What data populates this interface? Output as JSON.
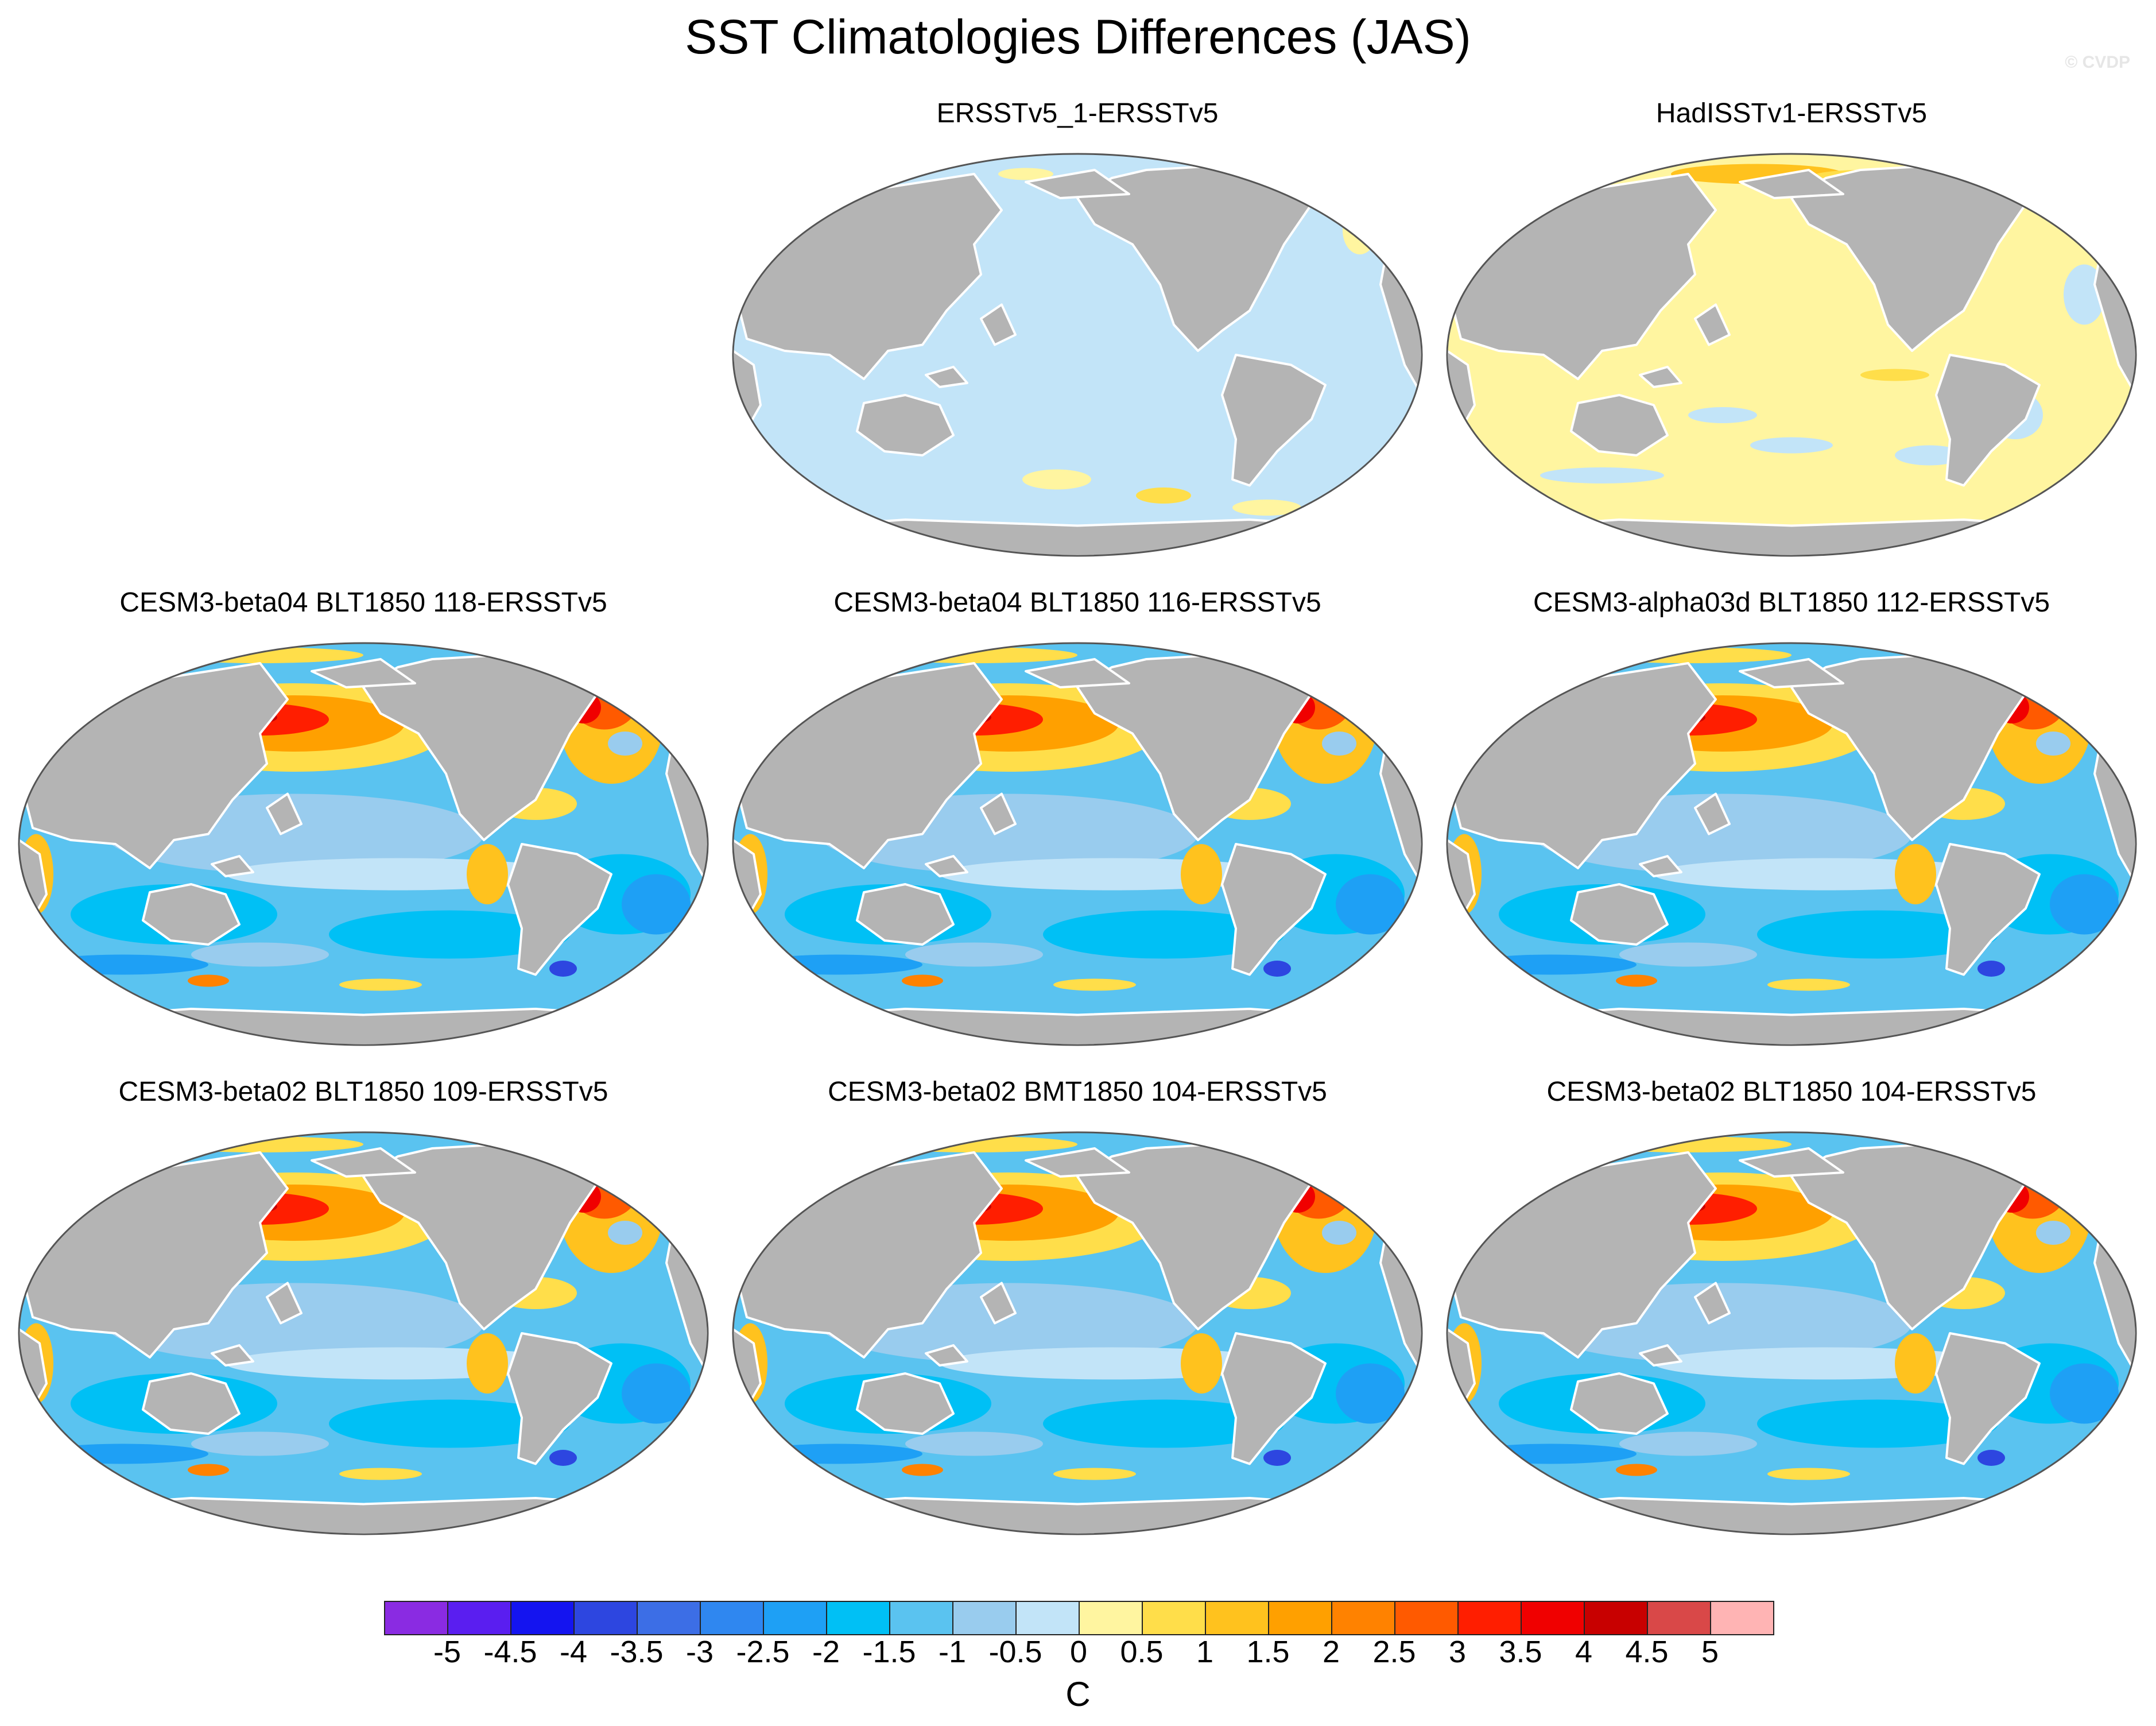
{
  "title": "SST Climatologies Differences (JAS)",
  "watermark": "© CVDP",
  "panels": [
    {
      "title": "ERSSTv5_1-ERSSTv5",
      "pattern": "uniform-negative"
    },
    {
      "title": "HadISSTv1-ERSSTv5",
      "pattern": "uniform-positive"
    },
    {
      "title": "CESM3-beta04 BLT1850 118-ERSSTv5",
      "pattern": "model"
    },
    {
      "title": "CESM3-beta04 BLT1850 116-ERSSTv5",
      "pattern": "model"
    },
    {
      "title": "CESM3-alpha03d BLT1850 112-ERSSTv5",
      "pattern": "model"
    },
    {
      "title": "CESM3-beta02 BLT1850 109-ERSSTv5",
      "pattern": "model"
    },
    {
      "title": "CESM3-beta02 BMT1850 104-ERSSTv5",
      "pattern": "model"
    },
    {
      "title": "CESM3-beta02 BLT1850 104-ERSSTv5",
      "pattern": "model"
    }
  ],
  "colorbar": {
    "unit": "C",
    "labels": [
      "-5",
      "-4.5",
      "-4",
      "-3.5",
      "-3",
      "-2.5",
      "-2",
      "-1.5",
      "-1",
      "-0.5",
      "0",
      "0.5",
      "1",
      "1.5",
      "2",
      "2.5",
      "3",
      "3.5",
      "4",
      "4.5",
      "5"
    ],
    "colors": [
      "#8a2be2",
      "#5a1ef0",
      "#1414f0",
      "#2d46e0",
      "#3c6ee6",
      "#2f87f0",
      "#1ea0f5",
      "#00c0f5",
      "#5ac3f0",
      "#99ccee",
      "#c2e4f8",
      "#fff5a0",
      "#ffde4a",
      "#ffc21e",
      "#ffa000",
      "#ff8200",
      "#ff5a00",
      "#ff1e00",
      "#f00000",
      "#c80000",
      "#d94848",
      "#ffb4b4"
    ]
  },
  "map_colors": {
    "land": "#b4b4b4",
    "coast": "#ffffff",
    "outline": "#555555"
  }
}
